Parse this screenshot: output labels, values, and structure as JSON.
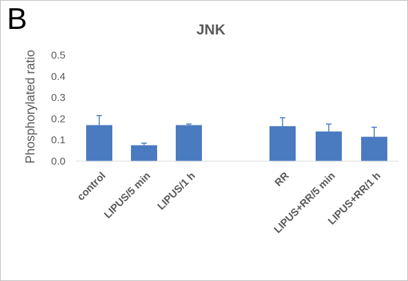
{
  "panel_letter": "B",
  "chart_data": {
    "type": "bar",
    "title": "JNK",
    "xlabel": "",
    "ylabel": "Phosphorylated ratio",
    "ylim": [
      0,
      0.5
    ],
    "yticks": [
      "0.0",
      "0.1",
      "0.2",
      "0.3",
      "0.4",
      "0.5"
    ],
    "categories": [
      "control",
      "LIPUS/5 min",
      "LIPUS/1 h",
      "RR",
      "LIPUS+RR/5 min",
      "LIPUS+RR/1 h"
    ],
    "values": [
      0.17,
      0.075,
      0.17,
      0.165,
      0.14,
      0.115
    ],
    "errors": [
      0.045,
      0.01,
      0.005,
      0.04,
      0.035,
      0.045
    ],
    "bar_color": "#4a7bc1",
    "grid": false,
    "legend": "none"
  }
}
